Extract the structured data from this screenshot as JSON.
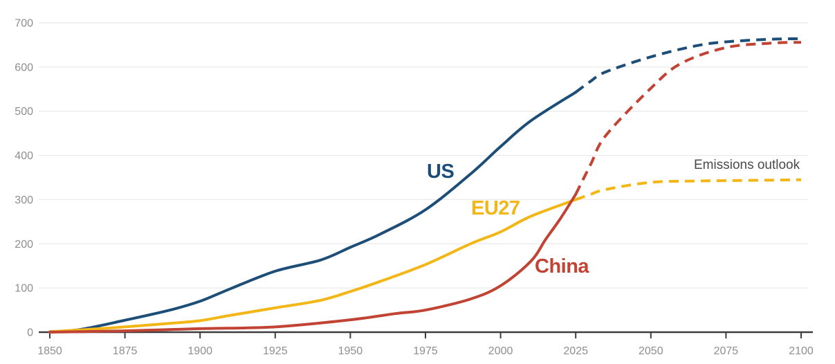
{
  "chart_data": {
    "type": "line",
    "title": "",
    "annotation": "Emissions outlook",
    "annotation_color": "#4a4a4a",
    "x_label": "",
    "y_label": "",
    "x_range": [
      1850,
      2100
    ],
    "y_range": [
      0,
      700
    ],
    "x_ticks": [
      1850,
      1875,
      1900,
      1925,
      1950,
      1975,
      2000,
      2025,
      2050,
      2075,
      2100
    ],
    "y_ticks": [
      0,
      100,
      200,
      300,
      400,
      500,
      600,
      700
    ],
    "grid": true,
    "legend_position": "inline-labels",
    "axis_colors": {
      "gridline": "#e8e8e8",
      "axis_line": "#3d3d3d",
      "tick_label": "#8e8e8e"
    },
    "outlook_style": "dashed",
    "series": [
      {
        "id": "us",
        "label": "US",
        "color": "#1d4e78",
        "historical": {
          "x": [
            1850,
            1860,
            1875,
            1890,
            1900,
            1910,
            1925,
            1940,
            1950,
            1960,
            1975,
            1990,
            2000,
            2010,
            2025
          ],
          "y": [
            1,
            6,
            27,
            50,
            70,
            98,
            138,
            163,
            192,
            222,
            277,
            358,
            420,
            478,
            543
          ]
        },
        "outlook": {
          "x": [
            2025,
            2030,
            2035,
            2050,
            2065,
            2075,
            2090,
            2100
          ],
          "y": [
            543,
            568,
            589,
            623,
            648,
            657,
            663,
            664
          ]
        }
      },
      {
        "id": "eu27",
        "label": "EU27",
        "color": "#f3b617",
        "historical": {
          "x": [
            1850,
            1860,
            1875,
            1890,
            1900,
            1910,
            1925,
            1940,
            1950,
            1960,
            1975,
            1990,
            2000,
            2010,
            2025
          ],
          "y": [
            1,
            5,
            12,
            20,
            26,
            38,
            55,
            72,
            92,
            115,
            153,
            200,
            227,
            262,
            300
          ]
        },
        "outlook": {
          "x": [
            2025,
            2030,
            2035,
            2050,
            2065,
            2075,
            2090,
            2100
          ],
          "y": [
            300,
            312,
            323,
            339,
            342,
            343,
            344,
            345
          ]
        }
      },
      {
        "id": "china",
        "label": "China",
        "color": "#c04334",
        "historical": {
          "x": [
            1850,
            1875,
            1900,
            1925,
            1950,
            1965,
            1975,
            1990,
            2000,
            2010,
            2015,
            2020,
            2025
          ],
          "y": [
            0,
            3,
            8,
            12,
            28,
            42,
            50,
            75,
            105,
            160,
            210,
            258,
            312
          ]
        },
        "outlook": {
          "x": [
            2025,
            2030,
            2035,
            2050,
            2060,
            2075,
            2090,
            2100
          ],
          "y": [
            312,
            380,
            445,
            552,
            608,
            644,
            654,
            656
          ]
        }
      }
    ]
  }
}
